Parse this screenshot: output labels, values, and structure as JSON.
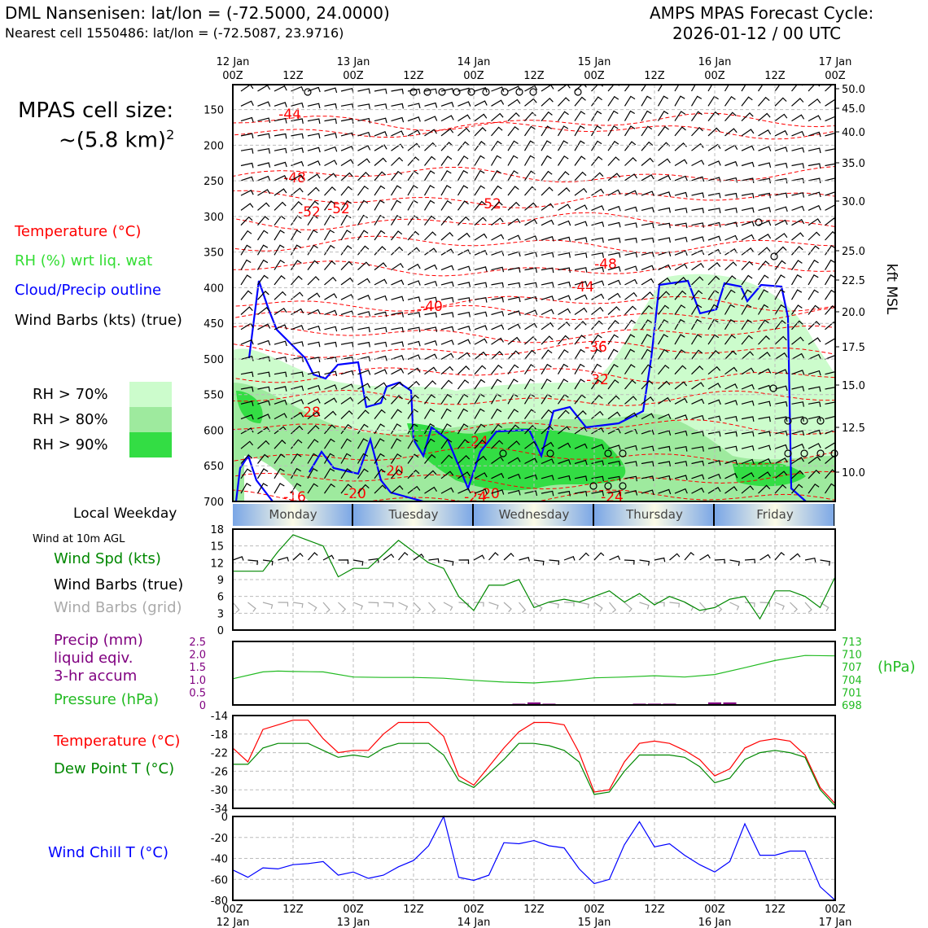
{
  "header": {
    "left_line1": "DML Nansenisen: lat/lon = (-72.5000, 24.0000)",
    "left_line2": "Nearest cell 1550486: lat/lon = (-72.5087, 23.9716)",
    "right_line1": "AMPS MPAS Forecast Cycle:",
    "right_line2": "2026-01-12 / 00 UTC"
  },
  "cell_size": {
    "line1": "MPAS cell size:",
    "line2": "~(5.8 km)",
    "sup": "2"
  },
  "legend_upper": {
    "temperature": "Temperature (°C)",
    "rh": "RH (%) wrt liq. wat",
    "cloud": "Cloud/Precip outline",
    "barbs": "Wind Barbs (kts) (true)"
  },
  "rh_legend": [
    "RH > 70%",
    "RH > 80%",
    "RH > 90%"
  ],
  "colors": {
    "rh70": "#ccfccc",
    "rh80": "#9eea9e",
    "rh90": "#33dd44",
    "temp": "#ff0000",
    "cloud": "#0000ff",
    "green": "#008800",
    "pressure": "#22bb22",
    "precip": "#800080",
    "chill": "#0000ff",
    "grid_barbs": "#aaaaaa"
  },
  "local_weekday_label": "Local Weekday",
  "weekdays": [
    "Monday",
    "Tuesday",
    "Wednesday",
    "Thursday",
    "Friday"
  ],
  "wind10_label": "Wind at 10m AGL",
  "panel_labels": {
    "wind_spd": "Wind Spd (kts)",
    "wind_barbs": "Wind Barbs (true)",
    "wind_barbs_grid": "Wind Barbs (grid)",
    "precip1": "Precip (mm)",
    "precip2": "liquid eqiv.",
    "precip3": "3-hr accum",
    "pressure": "Pressure (hPa)",
    "hpa_unit": "(hPa)",
    "temp": "Temperature (°C)",
    "dew": "Dew Point T (°C)",
    "chill": "Wind Chill T (°C)"
  },
  "time_axis": {
    "hour_labels": [
      "00Z",
      "12Z",
      "00Z",
      "12Z",
      "00Z",
      "12Z",
      "00Z",
      "12Z",
      "00Z",
      "12Z",
      "00Z"
    ],
    "day_labels": [
      "12 Jan",
      "13 Jan",
      "14 Jan",
      "15 Jan",
      "16 Jan",
      "17 Jan"
    ]
  },
  "chart_data": [
    {
      "type": "heatmap",
      "name": "time-height cross section",
      "ylabel_right": "kft MSL",
      "pressure_ticks": [
        150,
        200,
        250,
        300,
        350,
        400,
        450,
        500,
        550,
        600,
        650,
        700
      ],
      "kft_ticks": [
        "50.0",
        "45.0",
        "40.0",
        "35.0",
        "30.0",
        "25.0",
        "22.5",
        "20.0",
        "17.5",
        "15.0",
        "12.5",
        "10.0"
      ],
      "temperature_contour_labels": [
        "-44",
        "-48",
        "-52",
        "-52",
        "-52",
        "-48",
        "-44",
        "-40",
        "-36",
        "-32",
        "-28",
        "-24",
        "-20",
        "-20",
        "-16",
        "-20",
        "-24",
        "-24"
      ]
    },
    {
      "type": "line",
      "name": "wind speed 10m",
      "ylim": [
        0,
        18
      ],
      "yticks": [
        0,
        3,
        6,
        9,
        12,
        15,
        18
      ],
      "x_hours": [
        0,
        6,
        9,
        12,
        15,
        18,
        21,
        24,
        27,
        30,
        33,
        36,
        39,
        42,
        45,
        48,
        51,
        54,
        57,
        60,
        63,
        66,
        69,
        72,
        75,
        78,
        81,
        84,
        87,
        90,
        93,
        96,
        99,
        102,
        105,
        108,
        111,
        114,
        117,
        120
      ],
      "values": [
        10.5,
        10.5,
        14,
        17,
        16,
        15,
        9.5,
        11,
        11,
        13.5,
        16,
        14,
        12,
        11,
        6,
        3.5,
        8,
        8,
        9,
        4,
        5,
        5.5,
        5,
        6,
        7,
        5,
        6.5,
        4.5,
        6,
        5,
        3.5,
        4,
        5.5,
        6,
        2,
        7,
        7,
        6,
        4,
        9.5
      ]
    },
    {
      "type": "bar",
      "name": "precip 3hr",
      "ylim": [
        0,
        2.5
      ],
      "yticks": [
        "0",
        "0.5",
        "1.0",
        "1.5",
        "2.0",
        "2.5"
      ],
      "x_hours": [
        57,
        60,
        63,
        81,
        84,
        87,
        96,
        99
      ],
      "values": [
        0.05,
        0.1,
        0.05,
        0.05,
        0.05,
        0.05,
        0.1,
        0.1
      ]
    },
    {
      "type": "line",
      "name": "pressure",
      "ylim": [
        698,
        713
      ],
      "yticks": [
        "713",
        "710",
        "707",
        "704",
        "701",
        "698"
      ],
      "x_hours": [
        0,
        6,
        9,
        12,
        18,
        24,
        30,
        36,
        42,
        48,
        54,
        60,
        66,
        72,
        78,
        84,
        90,
        96,
        102,
        108,
        114,
        120
      ],
      "values": [
        704.2,
        705.8,
        706,
        705.9,
        705.8,
        704.6,
        704.5,
        704.5,
        704.3,
        703.8,
        703.4,
        703.2,
        703.7,
        704.4,
        704.6,
        704.9,
        704.6,
        705.2,
        706.8,
        708.5,
        709.7,
        709.6
      ]
    },
    {
      "type": "line",
      "name": "temperature and dew point",
      "ylim": [
        -34,
        -14
      ],
      "yticks": [
        -14,
        -18,
        -22,
        -26,
        -30,
        -34
      ],
      "x_hours": [
        0,
        3,
        6,
        9,
        12,
        15,
        18,
        21,
        24,
        27,
        30,
        33,
        36,
        39,
        42,
        45,
        48,
        51,
        54,
        57,
        60,
        63,
        66,
        69,
        72,
        75,
        78,
        81,
        84,
        87,
        90,
        93,
        96,
        99,
        102,
        105,
        108,
        111,
        114,
        117,
        120
      ],
      "series": [
        {
          "name": "Temperature",
          "values": [
            -21,
            -24,
            -17,
            -16,
            -15,
            -15,
            -19,
            -22,
            -21.5,
            -21.5,
            -18,
            -15.5,
            -15.5,
            -15.5,
            -18.5,
            -27,
            -29,
            -25,
            -21,
            -17.5,
            -15.5,
            -15.5,
            -16,
            -22,
            -30.5,
            -30,
            -24,
            -20,
            -19.5,
            -20,
            -21.5,
            -23.5,
            -27,
            -25.5,
            -21,
            -19.5,
            -19,
            -19.5,
            -22.5,
            -29.5,
            -33
          ]
        },
        {
          "name": "Dew Point",
          "values": [
            -24.5,
            -24.5,
            -21,
            -20,
            -20,
            -20,
            -21.5,
            -23,
            -22.5,
            -23,
            -21,
            -20,
            -20,
            -20,
            -22.5,
            -28,
            -29.5,
            -26.5,
            -23.5,
            -20,
            -20,
            -20.5,
            -21.5,
            -24,
            -31,
            -30.5,
            -26,
            -22.5,
            -22.5,
            -22.5,
            -23,
            -25,
            -28.5,
            -27.5,
            -23.5,
            -22,
            -21.5,
            -22,
            -23,
            -30,
            -33.5
          ]
        }
      ]
    },
    {
      "type": "line",
      "name": "wind chill",
      "ylim": [
        -80,
        0
      ],
      "yticks": [
        0,
        -20,
        -40,
        -60,
        -80
      ],
      "x_hours": [
        0,
        3,
        6,
        9,
        12,
        15,
        18,
        21,
        24,
        27,
        30,
        33,
        36,
        39,
        42,
        45,
        48,
        51,
        54,
        57,
        60,
        63,
        66,
        69,
        72,
        75,
        78,
        81,
        84,
        87,
        90,
        93,
        96,
        99,
        102,
        105,
        108,
        111,
        114,
        117,
        120
      ],
      "values": [
        -51,
        -58,
        -49,
        -50,
        -46,
        -45,
        -43,
        -56,
        -53,
        -59,
        -56,
        -48,
        -42,
        -28,
        0,
        -58,
        -61,
        -56,
        -25,
        -26,
        -23,
        -28,
        -30,
        -50,
        -64,
        -60,
        -27,
        -5,
        -29,
        -26,
        -37,
        -46,
        -53,
        -43,
        -7,
        -37,
        -37,
        -33,
        -33,
        -67,
        -80
      ]
    }
  ]
}
